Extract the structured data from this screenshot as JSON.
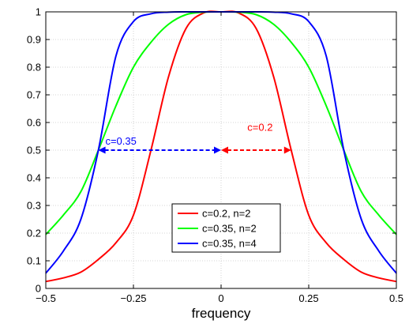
{
  "chart_data": {
    "type": "line",
    "title": "",
    "xlabel": "frequency",
    "ylabel": "",
    "xlim": [
      -0.5,
      0.5
    ],
    "ylim": [
      0,
      1
    ],
    "grid": true,
    "grid_style": "dotted",
    "legend_placement": "lower-center",
    "x_ticks": [
      -0.5,
      -0.25,
      0,
      0.25,
      0.5
    ],
    "x_tick_labels": [
      "−0.5",
      "−0.25",
      "0",
      "0.25",
      "0.5"
    ],
    "y_ticks": [
      0,
      0.1,
      0.2,
      0.3,
      0.4,
      0.5,
      0.6,
      0.7,
      0.8,
      0.9,
      1
    ],
    "y_tick_labels": [
      "0",
      "0.1",
      "0.2",
      "0.3",
      "0.4",
      "0.5",
      "0.6",
      "0.7",
      "0.8",
      "0.9",
      "1"
    ],
    "x": [
      -0.5,
      -0.45,
      -0.4,
      -0.35,
      -0.3,
      -0.25,
      -0.2,
      -0.15,
      -0.1,
      -0.05,
      0,
      0.05,
      0.1,
      0.15,
      0.2,
      0.25,
      0.3,
      0.35,
      0.4,
      0.45,
      0.5
    ],
    "series": [
      {
        "name": "c=0.2, n=2",
        "color": "#ff0000",
        "values": [
          0.025,
          0.038,
          0.059,
          0.105,
          0.165,
          0.265,
          0.5,
          0.765,
          0.94,
          0.996,
          1.0,
          0.996,
          0.94,
          0.765,
          0.5,
          0.265,
          0.165,
          0.105,
          0.059,
          0.038,
          0.025
        ]
      },
      {
        "name": "c=0.35, n=2",
        "color": "#00ff00",
        "values": [
          0.195,
          0.265,
          0.35,
          0.5,
          0.66,
          0.8,
          0.89,
          0.955,
          0.99,
          0.999,
          1.0,
          0.999,
          0.99,
          0.955,
          0.89,
          0.8,
          0.66,
          0.5,
          0.35,
          0.265,
          0.195
        ]
      },
      {
        "name": "c=0.35, n=4",
        "color": "#0000ff",
        "values": [
          0.055,
          0.135,
          0.25,
          0.5,
          0.84,
          0.965,
          0.993,
          0.999,
          1.0,
          1.0,
          1.0,
          1.0,
          1.0,
          0.999,
          0.993,
          0.965,
          0.84,
          0.5,
          0.25,
          0.135,
          0.055
        ]
      }
    ],
    "annotations": [
      {
        "text": "c=0.35",
        "color": "#0000ff",
        "arrow_from": -0.35,
        "arrow_to": 0,
        "arrow_y": 0.5,
        "text_x": -0.33,
        "text_y": 0.52
      },
      {
        "text": "c=0.2",
        "color": "#ff0000",
        "arrow_from": 0,
        "arrow_to": 0.2,
        "arrow_y": 0.5,
        "text_x": 0.075,
        "text_y": 0.57
      }
    ]
  }
}
